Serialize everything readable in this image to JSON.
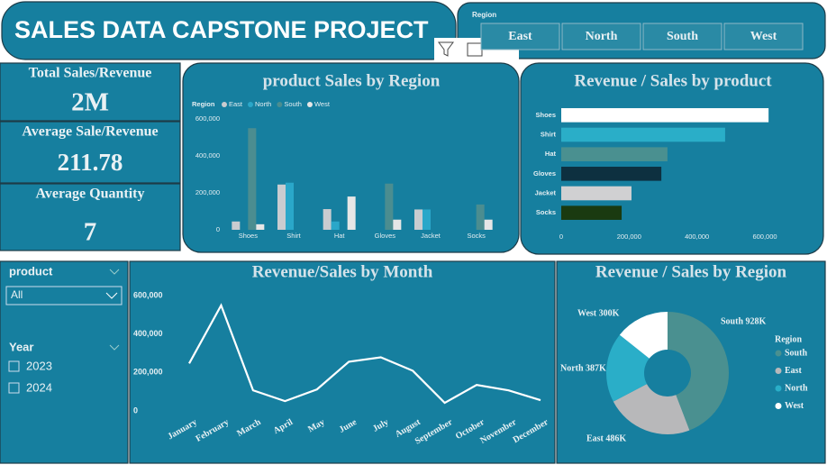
{
  "header": {
    "title": "SALES DATA CAPSTONE PROJECT"
  },
  "region_slicer": {
    "label": "Region",
    "options": [
      "East",
      "North",
      "South",
      "West"
    ]
  },
  "kpis": [
    {
      "label": "Total Sales/Revenue",
      "value": "2M"
    },
    {
      "label": "Average Sale/Revenue",
      "value": "211.78"
    },
    {
      "label": "Average Quantity",
      "value": "7"
    }
  ],
  "filters": {
    "product_label": "product",
    "product_value": "All",
    "year_label": "Year",
    "years": [
      "2023",
      "2024"
    ]
  },
  "chart_data": [
    {
      "type": "bar",
      "title": "product Sales by Region",
      "legend_title": "Region",
      "categories": [
        "Shoes",
        "Shirt",
        "Hat",
        "Gloves",
        "Jacket",
        "Socks"
      ],
      "series": [
        {
          "name": "East",
          "color": "#c9ccd0",
          "values": [
            45000,
            245000,
            112000,
            0,
            110000,
            0
          ]
        },
        {
          "name": "North",
          "color": "#2aa7c9",
          "values": [
            0,
            255000,
            45000,
            0,
            110000,
            0
          ]
        },
        {
          "name": "South",
          "color": "#4b8d90",
          "values": [
            550000,
            0,
            0,
            250000,
            0,
            137000
          ]
        },
        {
          "name": "West",
          "color": "#e6e6e6",
          "values": [
            30000,
            0,
            180000,
            55000,
            0,
            55000
          ]
        }
      ],
      "ylim": [
        0,
        600000
      ],
      "yticks": [
        0,
        {
          "value": 200000,
          "label": "200,000"
        },
        {
          "value": 400000,
          "label": "400,000"
        },
        {
          "value": 600000,
          "label": "600,000"
        }
      ]
    },
    {
      "type": "hbar",
      "title": "Revenue / Sales by product",
      "categories": [
        "Shoes",
        "Shirt",
        "Hat",
        "Gloves",
        "Jacket",
        "Socks"
      ],
      "values": [
        611000,
        483000,
        313000,
        295000,
        207000,
        178000
      ],
      "colors": [
        "#ffffff",
        "#2aaec8",
        "#4a9090",
        "#0d3040",
        "#d0d0d2",
        "#1a3a10"
      ],
      "xlim": [
        0,
        600000
      ],
      "xticks": [
        0,
        {
          "value": 200000,
          "label": "200,000"
        },
        {
          "value": 400000,
          "label": "400,000"
        },
        {
          "value": 600000,
          "label": "600,000"
        }
      ]
    },
    {
      "type": "line",
      "title": "Revenue/Sales by Month",
      "categories": [
        "January",
        "February",
        "March",
        "April",
        "May",
        "June",
        "July",
        "August",
        "September",
        "October",
        "November",
        "December"
      ],
      "values": [
        247000,
        549000,
        107000,
        51000,
        112000,
        256000,
        279000,
        209000,
        42000,
        135000,
        107000,
        56000
      ],
      "color": "#ffffff",
      "ylim": [
        0,
        600000
      ],
      "yticks": [
        0,
        {
          "value": 200000,
          "label": "200,000"
        },
        {
          "value": 400000,
          "label": "400,000"
        },
        {
          "value": 600000,
          "label": "600,000"
        }
      ]
    },
    {
      "type": "donut",
      "title": "Revenue / Sales by Region",
      "legend_title": "Region",
      "categories": [
        "South",
        "East",
        "North",
        "West"
      ],
      "values": [
        928,
        486,
        387,
        300
      ],
      "value_labels": [
        "South 928K",
        "East 486K",
        "North 387K",
        "West 300K"
      ],
      "colors": [
        "#4a9090",
        "#b8b8ba",
        "#2aaec8",
        "#ffffff"
      ]
    }
  ]
}
